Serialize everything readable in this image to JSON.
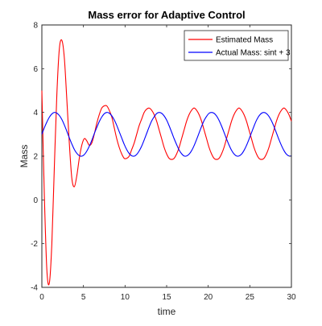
{
  "chart_data": {
    "type": "line",
    "title": "Mass error for Adaptive Control",
    "xlabel": "time",
    "ylabel": "Mass",
    "xlim": [
      0,
      30
    ],
    "ylim": [
      -4,
      8
    ],
    "xticks": [
      0,
      5,
      10,
      15,
      20,
      25,
      30
    ],
    "yticks": [
      -4,
      -2,
      0,
      2,
      4,
      6,
      8
    ],
    "grid": false,
    "legend": "top-right",
    "series": [
      {
        "name": "Estimated Mass",
        "color": "#ff0000",
        "x": [
          0,
          0.3,
          0.6,
          0.9,
          1.2,
          1.5,
          1.8,
          2.1,
          2.4,
          2.7,
          3.0,
          3.3,
          3.6,
          3.9,
          4.2,
          4.5,
          4.8,
          5.1,
          5.4,
          5.7,
          6.0,
          6.3,
          6.6,
          6.9,
          7.2,
          7.5,
          7.8,
          8.1,
          8.4,
          8.7,
          9.0,
          9.3,
          9.6,
          9.9,
          10.2,
          10.5,
          10.8,
          11.1,
          11.4,
          11.7,
          12.0,
          12.3,
          12.6,
          12.9,
          13.2,
          13.5,
          13.8,
          14.1,
          14.4,
          14.7,
          15.0,
          15.3,
          15.6,
          15.9,
          16.2,
          16.5,
          16.8,
          17.1,
          17.4,
          17.7,
          18.0,
          18.3,
          18.6,
          18.9,
          19.2,
          19.5,
          19.8,
          20.1,
          20.4,
          20.7,
          21.0,
          21.3,
          21.6,
          21.9,
          22.2,
          22.5,
          22.8,
          23.1,
          23.4,
          23.7,
          24.0,
          24.3,
          24.6,
          24.9,
          25.2,
          25.5,
          25.8,
          26.1,
          26.4,
          26.7,
          27.0,
          27.3,
          27.6,
          27.9,
          28.2,
          28.5,
          28.8,
          29.1,
          29.4,
          29.7,
          30.0
        ],
        "y": [
          5.0,
          0.2,
          -3.2,
          -3.8,
          -2.0,
          1.5,
          4.8,
          6.9,
          7.3,
          6.5,
          4.6,
          2.6,
          1.0,
          0.6,
          1.1,
          1.9,
          2.5,
          2.8,
          2.7,
          2.5,
          2.6,
          3.0,
          3.5,
          3.9,
          4.2,
          4.3,
          4.3,
          4.1,
          3.8,
          3.3,
          2.8,
          2.4,
          2.1,
          1.9,
          1.9,
          2.0,
          2.3,
          2.6,
          3.0,
          3.4,
          3.7,
          4.0,
          4.15,
          4.2,
          4.1,
          3.9,
          3.6,
          3.2,
          2.8,
          2.4,
          2.1,
          1.9,
          1.85,
          1.9,
          2.1,
          2.4,
          2.8,
          3.2,
          3.6,
          3.9,
          4.1,
          4.2,
          4.1,
          3.9,
          3.6,
          3.2,
          2.8,
          2.4,
          2.1,
          1.9,
          1.85,
          1.9,
          2.1,
          2.4,
          2.8,
          3.2,
          3.6,
          3.9,
          4.1,
          4.2,
          4.1,
          3.9,
          3.6,
          3.2,
          2.8,
          2.4,
          2.1,
          1.9,
          1.85,
          1.9,
          2.1,
          2.4,
          2.8,
          3.2,
          3.6,
          3.9,
          4.1,
          4.2,
          4.1,
          3.9,
          3.6
        ]
      },
      {
        "name": "Actual Mass: sint + 3",
        "color": "#0000ff",
        "x": [
          0,
          0.3,
          0.6,
          0.9,
          1.2,
          1.5,
          1.8,
          2.1,
          2.4,
          2.7,
          3.0,
          3.3,
          3.6,
          3.9,
          4.2,
          4.5,
          4.8,
          5.1,
          5.4,
          5.7,
          6.0,
          6.3,
          6.6,
          6.9,
          7.2,
          7.5,
          7.8,
          8.1,
          8.4,
          8.7,
          9.0,
          9.3,
          9.6,
          9.9,
          10.2,
          10.5,
          10.8,
          11.1,
          11.4,
          11.7,
          12.0,
          12.3,
          12.6,
          12.9,
          13.2,
          13.5,
          13.8,
          14.1,
          14.4,
          14.7,
          15.0,
          15.3,
          15.6,
          15.9,
          16.2,
          16.5,
          16.8,
          17.1,
          17.4,
          17.7,
          18.0,
          18.3,
          18.6,
          18.9,
          19.2,
          19.5,
          19.8,
          20.1,
          20.4,
          20.7,
          21.0,
          21.3,
          21.6,
          21.9,
          22.2,
          22.5,
          22.8,
          23.1,
          23.4,
          23.7,
          24.0,
          24.3,
          24.6,
          24.9,
          25.2,
          25.5,
          25.8,
          26.1,
          26.4,
          26.7,
          27.0,
          27.3,
          27.6,
          27.9,
          28.2,
          28.5,
          28.8,
          29.1,
          29.4,
          29.7,
          30.0
        ],
        "y": [
          3.0,
          3.3,
          3.56,
          3.78,
          3.93,
          4.0,
          3.97,
          3.86,
          3.68,
          3.43,
          3.14,
          2.84,
          2.56,
          2.31,
          2.13,
          2.02,
          2.0,
          2.07,
          2.23,
          2.45,
          2.72,
          3.03,
          3.31,
          3.58,
          3.79,
          3.94,
          4.0,
          3.97,
          3.85,
          3.66,
          3.41,
          3.12,
          2.83,
          2.54,
          2.3,
          2.12,
          2.02,
          2.0,
          2.08,
          2.24,
          2.46,
          2.74,
          3.04,
          3.34,
          3.61,
          3.8,
          3.95,
          4.0,
          3.96,
          3.84,
          3.65,
          3.39,
          3.1,
          2.8,
          2.53,
          2.28,
          2.11,
          2.01,
          2.01,
          2.09,
          2.25,
          2.48,
          2.76,
          3.06,
          3.36,
          3.63,
          3.82,
          3.96,
          4.0,
          3.96,
          3.84,
          3.64,
          3.38,
          3.09,
          2.79,
          2.51,
          2.27,
          2.1,
          2.01,
          2.01,
          2.09,
          2.26,
          2.49,
          2.77,
          3.07,
          3.37,
          3.64,
          3.84,
          3.96,
          4.0,
          3.95,
          3.82,
          3.62,
          3.36,
          3.06,
          2.76,
          2.49,
          2.26,
          2.09,
          2.01,
          2.01
        ]
      }
    ]
  }
}
